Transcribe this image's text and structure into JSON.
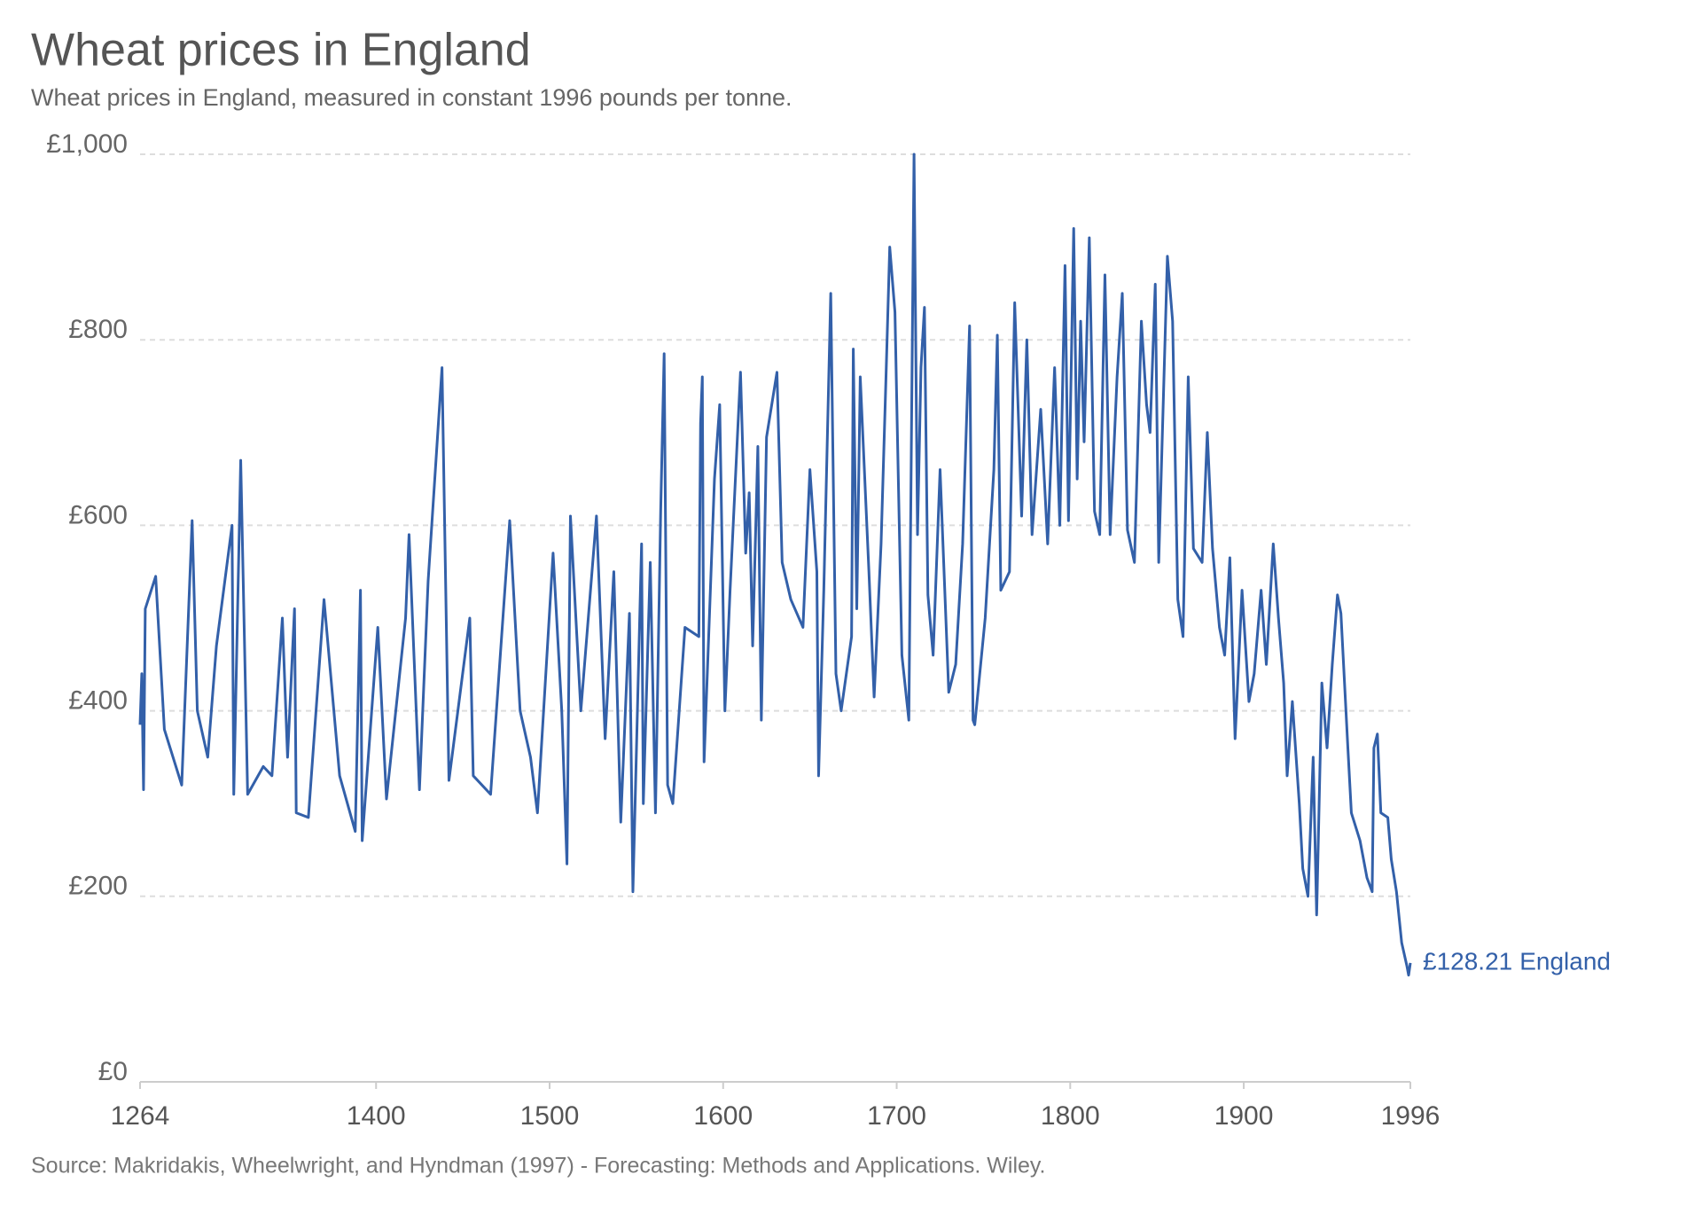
{
  "chart_data": {
    "type": "line",
    "title": "Wheat prices in England",
    "subtitle": "Wheat prices in England, measured in constant 1996 pounds per tonne.",
    "source": "Source: Makridakis, Wheelwright, and Hyndman (1997) - Forecasting: Methods and Applications. Wiley.",
    "x": [
      1264,
      1265,
      1266,
      1267,
      1273,
      1278,
      1288,
      1294,
      1297,
      1303,
      1308,
      1317,
      1318,
      1322,
      1326,
      1335,
      1340,
      1346,
      1349,
      1353,
      1354,
      1361,
      1370,
      1379,
      1388,
      1391,
      1392,
      1401,
      1406,
      1417,
      1419,
      1425,
      1430,
      1438,
      1442,
      1454,
      1456,
      1466,
      1477,
      1483,
      1489,
      1493,
      1502,
      1507,
      1510,
      1512,
      1518,
      1527,
      1532,
      1537,
      1541,
      1546,
      1548,
      1553,
      1554,
      1558,
      1561,
      1564,
      1566,
      1568,
      1571,
      1578,
      1586,
      1587,
      1588,
      1589,
      1595,
      1598,
      1601,
      1604,
      1610,
      1613,
      1615,
      1617,
      1620,
      1622,
      1625,
      1631,
      1634,
      1639,
      1646,
      1650,
      1654,
      1655,
      1658,
      1662,
      1665,
      1668,
      1674,
      1675,
      1677,
      1679,
      1684,
      1687,
      1691,
      1694,
      1696,
      1699,
      1703,
      1707,
      1710,
      1712,
      1714,
      1716,
      1718,
      1721,
      1725,
      1730,
      1734,
      1738,
      1742,
      1744,
      1745,
      1751,
      1756,
      1758,
      1760,
      1765,
      1768,
      1772,
      1775,
      1778,
      1783,
      1787,
      1791,
      1794,
      1797,
      1799,
      1802,
      1804,
      1806,
      1808,
      1811,
      1814,
      1817,
      1820,
      1823,
      1827,
      1830,
      1833,
      1837,
      1841,
      1844,
      1846,
      1849,
      1851,
      1856,
      1859,
      1862,
      1865,
      1868,
      1871,
      1876,
      1879,
      1882,
      1886,
      1889,
      1892,
      1895,
      1899,
      1903,
      1906,
      1910,
      1913,
      1917,
      1920,
      1923,
      1925,
      1928,
      1932,
      1934,
      1937,
      1940,
      1942,
      1945,
      1948,
      1951,
      1954,
      1956,
      1960,
      1962,
      1967,
      1971,
      1974,
      1975,
      1977,
      1979,
      1983,
      1985,
      1988,
      1991,
      1994,
      1995,
      1996
    ],
    "series": [
      {
        "name": "England",
        "color": "#3360a9",
        "values": [
          385,
          440,
          315,
          510,
          545,
          380,
          320,
          605,
          400,
          350,
          470,
          600,
          310,
          670,
          310,
          340,
          330,
          500,
          350,
          510,
          290,
          285,
          520,
          330,
          270,
          530,
          260,
          490,
          305,
          500,
          590,
          315,
          540,
          770,
          325,
          500,
          330,
          310,
          605,
          400,
          350,
          290,
          570,
          400,
          235,
          610,
          400,
          610,
          370,
          550,
          280,
          505,
          205,
          580,
          300,
          560,
          290,
          615,
          785,
          320,
          300,
          490,
          480,
          710,
          760,
          345,
          650,
          730,
          400,
          530,
          765,
          570,
          635,
          470,
          685,
          390,
          695,
          765,
          560,
          520,
          490,
          660,
          550,
          330,
          530,
          850,
          440,
          400,
          480,
          790,
          510,
          760,
          550,
          415,
          580,
          770,
          900,
          830,
          460,
          390,
          1000,
          590,
          770,
          835,
          525,
          460,
          660,
          420,
          450,
          580,
          815,
          390,
          385,
          500,
          660,
          805,
          530,
          550,
          840,
          610,
          800,
          590,
          725,
          580,
          770,
          600,
          880,
          605,
          920,
          650,
          820,
          690,
          910,
          615,
          590,
          870,
          590,
          760,
          850,
          595,
          560,
          820,
          730,
          700,
          860,
          560,
          890,
          820,
          520,
          480,
          760,
          575,
          560,
          700,
          575,
          490,
          460,
          565,
          370,
          530,
          410,
          440,
          530,
          450,
          580,
          500,
          430,
          330,
          410,
          300,
          230,
          200,
          350,
          180,
          430,
          360,
          450,
          525,
          505,
          360,
          290,
          260,
          220,
          205,
          360,
          375,
          290,
          285,
          240,
          205,
          150,
          125,
          115,
          128.21
        ],
        "value_labels": [
          null,
          null,
          null,
          null,
          null,
          null,
          null,
          null,
          null,
          null,
          null,
          null,
          null,
          null,
          null,
          null,
          null,
          null,
          null,
          null,
          null,
          null,
          null,
          null,
          null,
          null,
          null,
          null,
          null,
          null,
          null,
          null,
          null,
          null,
          null,
          null,
          null,
          null,
          null,
          null,
          null,
          null,
          null,
          null,
          null,
          null,
          null,
          null,
          null,
          null,
          null,
          null,
          null,
          null,
          null,
          null,
          null,
          null,
          null,
          null,
          null,
          null,
          null,
          null,
          null,
          null,
          null,
          null,
          null,
          null,
          null,
          null,
          null,
          null,
          null,
          null,
          null,
          null,
          null,
          null,
          null,
          null,
          null,
          null,
          null,
          null,
          null,
          null,
          null,
          null,
          null,
          null,
          null,
          null,
          null,
          null,
          null,
          null,
          null,
          null,
          null,
          null,
          null,
          null,
          null,
          null,
          null,
          null,
          null,
          null,
          null,
          null,
          null,
          null,
          null,
          null,
          null,
          null,
          null,
          null,
          null,
          null,
          null,
          null,
          null,
          null,
          null,
          null,
          null,
          null,
          null,
          null,
          null,
          null,
          null,
          null,
          null,
          null,
          null,
          null,
          null,
          null,
          null,
          null,
          null,
          null,
          null,
          null,
          null,
          null,
          null,
          null,
          null,
          null,
          null,
          null,
          null,
          null,
          null,
          null,
          null,
          null,
          null,
          null,
          null,
          null,
          null,
          null,
          null,
          null,
          null,
          null,
          null,
          null,
          null,
          null,
          null,
          null,
          null,
          null,
          null,
          null,
          null,
          null,
          null,
          null,
          null,
          null,
          null,
          null,
          null,
          null,
          null,
          "£128.21"
        ]
      }
    ],
    "xlim": [
      1264,
      1996
    ],
    "xticks": [
      1264,
      1400,
      1500,
      1600,
      1700,
      1800,
      1900,
      1996
    ],
    "ylim": [
      0,
      1000
    ],
    "yticks": [
      {
        "value": 0,
        "label": "£0"
      },
      {
        "value": 200,
        "label": "£200"
      },
      {
        "value": 400,
        "label": "£400"
      },
      {
        "value": 600,
        "label": "£600"
      },
      {
        "value": 800,
        "label": "£800"
      },
      {
        "value": 1000,
        "label": "£1,000"
      }
    ],
    "grid": true
  }
}
